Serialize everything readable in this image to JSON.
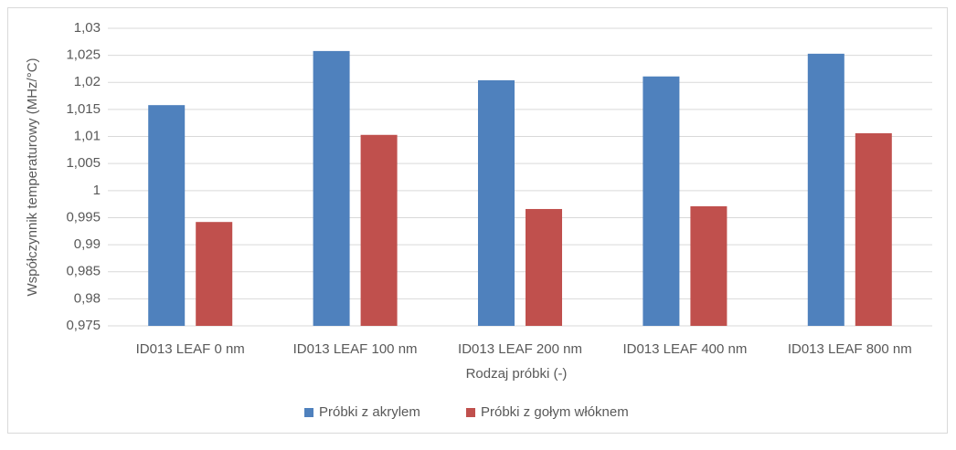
{
  "chart_data": {
    "type": "bar",
    "categories": [
      "ID013 LEAF 0 nm",
      "ID013 LEAF 100 nm",
      "ID013 LEAF 200 nm",
      "ID013 LEAF 400 nm",
      "ID013 LEAF 800 nm"
    ],
    "series": [
      {
        "name": "Próbki z akrylem",
        "color": "#4f81bd",
        "values": [
          1.0158,
          1.0258,
          1.0204,
          1.0211,
          1.0253
        ]
      },
      {
        "name": "Próbki z gołym włóknem",
        "color": "#c0504d",
        "values": [
          0.9942,
          1.0103,
          0.9966,
          0.9971,
          1.0106
        ]
      }
    ],
    "x_label": "Rodzaj próbki (-)",
    "y_label": "Współczynnik temperaturowy (MHz/°C)",
    "ylim": [
      0.975,
      1.03
    ],
    "yticks": [
      {
        "value": 0.975,
        "label": "0,975"
      },
      {
        "value": 0.98,
        "label": "0,98"
      },
      {
        "value": 0.985,
        "label": "0,985"
      },
      {
        "value": 0.99,
        "label": "0,99"
      },
      {
        "value": 0.995,
        "label": "0,995"
      },
      1,
      {
        "value": 1.005,
        "label": "1,005"
      },
      {
        "value": 1.01,
        "label": "1,01"
      },
      {
        "value": 1.015,
        "label": "1,015"
      },
      {
        "value": 1.02,
        "label": "1,02"
      },
      {
        "value": 1.025,
        "label": "1,025"
      },
      {
        "value": 1.03,
        "label": "1,03"
      }
    ],
    "grid": true,
    "legend": "bottom"
  }
}
